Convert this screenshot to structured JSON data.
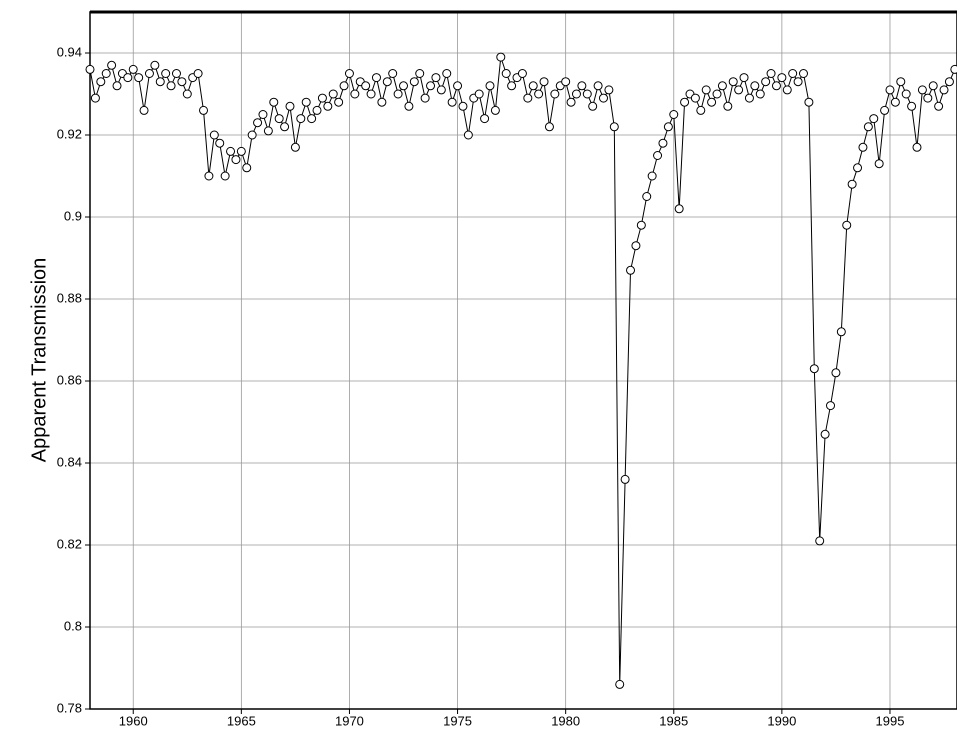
{
  "chart_data": {
    "type": "line",
    "y_label": "Apparent Transmission",
    "xlim": [
      1958,
      1998.1
    ],
    "ylim": [
      0.78,
      0.95
    ],
    "xticks": [
      1960,
      1965,
      1970,
      1975,
      1980,
      1985,
      1990,
      1995
    ],
    "yticks": [
      0.78,
      0.8,
      0.82,
      0.84,
      0.86,
      0.88,
      0.9,
      0.92,
      0.94
    ],
    "grid": true,
    "x": [
      1958,
      1958.25,
      1958.5,
      1958.75,
      1959,
      1959.25,
      1959.5,
      1959.75,
      1960,
      1960.25,
      1960.5,
      1960.75,
      1961,
      1961.25,
      1961.5,
      1961.75,
      1962,
      1962.25,
      1962.5,
      1962.75,
      1963,
      1963.25,
      1963.5,
      1963.75,
      1964,
      1964.25,
      1964.5,
      1964.75,
      1965,
      1965.25,
      1965.5,
      1965.75,
      1966,
      1966.25,
      1966.5,
      1966.75,
      1967,
      1967.25,
      1967.5,
      1967.75,
      1968,
      1968.25,
      1968.5,
      1968.75,
      1969,
      1969.25,
      1969.5,
      1969.75,
      1970,
      1970.25,
      1970.5,
      1970.75,
      1971,
      1971.25,
      1971.5,
      1971.75,
      1972,
      1972.25,
      1972.5,
      1972.75,
      1973,
      1973.25,
      1973.5,
      1973.75,
      1974,
      1974.25,
      1974.5,
      1974.75,
      1975,
      1975.25,
      1975.5,
      1975.75,
      1976,
      1976.25,
      1976.5,
      1976.75,
      1977,
      1977.25,
      1977.5,
      1977.75,
      1978,
      1978.25,
      1978.5,
      1978.75,
      1979,
      1979.25,
      1979.5,
      1979.75,
      1980,
      1980.25,
      1980.5,
      1980.75,
      1981,
      1981.25,
      1981.5,
      1981.75,
      1982,
      1982.25,
      1982.5,
      1982.75,
      1983,
      1983.25,
      1983.5,
      1983.75,
      1984,
      1984.25,
      1984.5,
      1984.75,
      1985,
      1985.25,
      1985.5,
      1985.75,
      1986,
      1986.25,
      1986.5,
      1986.75,
      1987,
      1987.25,
      1987.5,
      1987.75,
      1988,
      1988.25,
      1988.5,
      1988.75,
      1989,
      1989.25,
      1989.5,
      1989.75,
      1990,
      1990.25,
      1990.5,
      1990.75,
      1991,
      1991.25,
      1991.5,
      1991.75,
      1992,
      1992.25,
      1992.5,
      1992.75,
      1993,
      1993.25,
      1993.5,
      1993.75,
      1994,
      1994.25,
      1994.5,
      1994.75,
      1995,
      1995.25,
      1995.5,
      1995.75,
      1996,
      1996.25,
      1996.5,
      1996.75,
      1997,
      1997.25,
      1997.5,
      1997.75,
      1998
    ],
    "series": [
      {
        "color": "#000000",
        "values": [
          0.936,
          0.929,
          0.933,
          0.935,
          0.937,
          0.932,
          0.935,
          0.934,
          0.936,
          0.934,
          0.926,
          0.935,
          0.937,
          0.933,
          0.935,
          0.932,
          0.935,
          0.933,
          0.93,
          0.934,
          0.935,
          0.926,
          0.91,
          0.92,
          0.918,
          0.91,
          0.916,
          0.914,
          0.916,
          0.912,
          0.92,
          0.923,
          0.925,
          0.921,
          0.928,
          0.924,
          0.922,
          0.927,
          0.917,
          0.924,
          0.928,
          0.924,
          0.926,
          0.929,
          0.927,
          0.93,
          0.928,
          0.932,
          0.935,
          0.93,
          0.933,
          0.932,
          0.93,
          0.934,
          0.928,
          0.933,
          0.935,
          0.93,
          0.932,
          0.927,
          0.933,
          0.935,
          0.929,
          0.932,
          0.934,
          0.931,
          0.935,
          0.928,
          0.932,
          0.927,
          0.92,
          0.929,
          0.93,
          0.924,
          0.932,
          0.926,
          0.939,
          0.935,
          0.932,
          0.934,
          0.935,
          0.929,
          0.932,
          0.93,
          0.933,
          0.922,
          0.93,
          0.932,
          0.933,
          0.928,
          0.93,
          0.932,
          0.93,
          0.927,
          0.932,
          0.929,
          0.931,
          0.922,
          0.786,
          0.836,
          0.887,
          0.893,
          0.898,
          0.905,
          0.91,
          0.915,
          0.918,
          0.922,
          0.925,
          0.902,
          0.928,
          0.93,
          0.929,
          0.926,
          0.931,
          0.928,
          0.93,
          0.932,
          0.927,
          0.933,
          0.931,
          0.934,
          0.929,
          0.932,
          0.93,
          0.933,
          0.935,
          0.932,
          0.934,
          0.931,
          0.935,
          0.933,
          0.935,
          0.928,
          0.863,
          0.821,
          0.847,
          0.854,
          0.862,
          0.872,
          0.898,
          0.908,
          0.912,
          0.917,
          0.922,
          0.924,
          0.913,
          0.926,
          0.931,
          0.928,
          0.933,
          0.93,
          0.927,
          0.917,
          0.931,
          0.929,
          0.932,
          0.927,
          0.931,
          0.933,
          0.936
        ]
      }
    ]
  }
}
